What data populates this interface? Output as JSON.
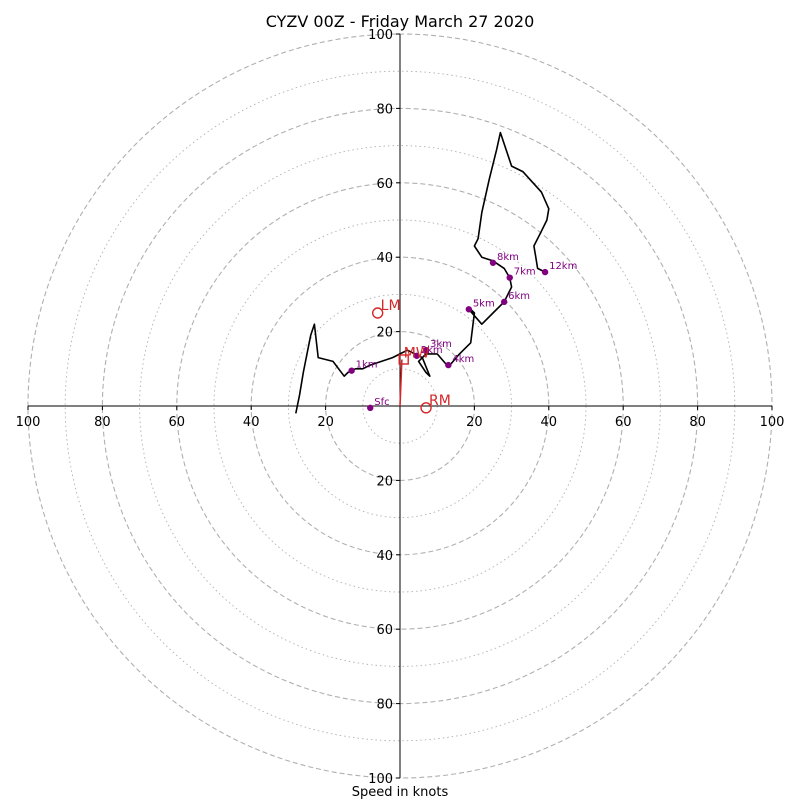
{
  "chart_data": {
    "type": "scatter",
    "title": "CYZV 00Z - Friday March 27 2020",
    "xlabel": "Speed in knots",
    "xlim": [
      -100,
      100
    ],
    "ylim": [
      -100,
      100
    ],
    "ring_step": 20,
    "minor_ring_step": 10,
    "x_tick_labels": [
      "100",
      "80",
      "60",
      "40",
      "20",
      "20",
      "40",
      "60",
      "80",
      "100"
    ],
    "x_tick_values": [
      -100,
      -80,
      -60,
      -40,
      -20,
      20,
      40,
      60,
      80,
      100
    ],
    "y_tick_labels": [
      "100",
      "80",
      "60",
      "40",
      "20",
      "20",
      "40",
      "60",
      "80",
      "100"
    ],
    "y_tick_values": [
      100,
      80,
      60,
      40,
      20,
      -20,
      -40,
      -60,
      -80,
      -100
    ],
    "colors": {
      "hodograph": "#000000",
      "height_markers": "#800080",
      "storm_motion": "#d62728",
      "grid": "#b0b0b0",
      "axes": "#000000"
    },
    "hodograph": {
      "u": [
        -28,
        -27,
        -26,
        -25,
        -24,
        -23,
        -22,
        -18,
        -15,
        -14,
        -12,
        -10,
        -8,
        -5,
        -2,
        0,
        2,
        4,
        6,
        8,
        7,
        5,
        7,
        10,
        13,
        16,
        19,
        20,
        19,
        18.5,
        22,
        25,
        28,
        30,
        29.5,
        28,
        25,
        22,
        20,
        21,
        22,
        24,
        26,
        27,
        30,
        33,
        38,
        40,
        39.5,
        38,
        36,
        36.5,
        37,
        39
      ],
      "v": [
        -2,
        3,
        9,
        14,
        19,
        22,
        13,
        12,
        8,
        9,
        10,
        10,
        11,
        12,
        13,
        14,
        15,
        14,
        13,
        8,
        9,
        12,
        14,
        14,
        10.5,
        14,
        17,
        25,
        26,
        26,
        22,
        25,
        28,
        32,
        34.5,
        37,
        39,
        40,
        43,
        45,
        52,
        61,
        69,
        73.5,
        64.5,
        63,
        57.5,
        53,
        50,
        47,
        43,
        40,
        37,
        36
      ]
    },
    "height_markers": [
      {
        "label": "Sfc",
        "u": -8,
        "v": -0.5
      },
      {
        "label": "1km",
        "u": -13,
        "v": 9.5
      },
      {
        "label": "2km",
        "u": 4.5,
        "v": 13.5
      },
      {
        "label": "3km",
        "u": 7,
        "v": 15
      },
      {
        "label": "4km",
        "u": 13,
        "v": 11
      },
      {
        "label": "5km",
        "u": 18.5,
        "v": 26
      },
      {
        "label": "6km",
        "u": 28,
        "v": 28
      },
      {
        "label": "7km",
        "u": 29.5,
        "v": 34.5
      },
      {
        "label": "8km",
        "u": 25,
        "v": 38.5
      },
      {
        "label": "12km",
        "u": 39,
        "v": 36
      }
    ],
    "storm_motion": {
      "rm": {
        "label": "RM",
        "u": 7,
        "v": -0.5
      },
      "lm": {
        "label": "LM",
        "u": -6,
        "v": 25
      },
      "mw": {
        "label": "MW",
        "u": 1,
        "v": 12.5
      },
      "shear_vector": {
        "u0": 0,
        "v0": 0,
        "u1": 0.5,
        "v1": 12.5
      }
    }
  }
}
